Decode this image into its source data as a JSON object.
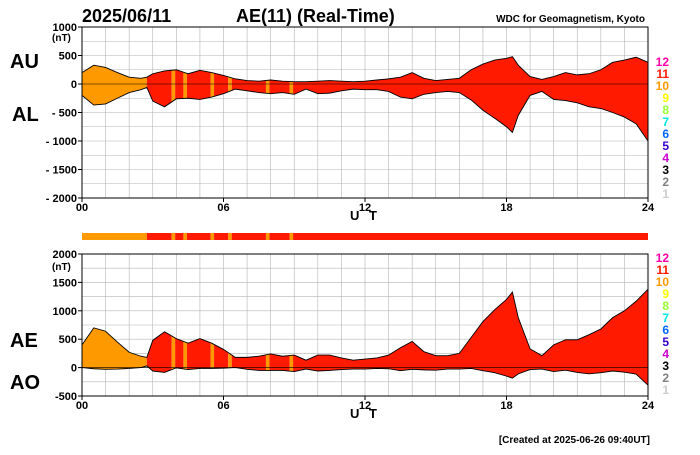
{
  "header": {
    "date": "2025/06/11",
    "title": "AE(11) (Real-Time)",
    "org": "WDC for Geomagnetism, Kyoto"
  },
  "footer": {
    "created": "[Created at 2025-06-26 09:40UT]"
  },
  "colors": {
    "station_count_fill": {
      "12": "#ff00aa",
      "11": "#ff1a00",
      "10": "#ff9900",
      "9": "#ffff00",
      "8": "#99ff33",
      "7": "#00e6e6",
      "6": "#0066ff",
      "5": "#3300cc",
      "4": "#cc00cc",
      "3": "#000000",
      "2": "#808080",
      "1": "#cccccc"
    }
  },
  "chart_data": [
    {
      "type": "area",
      "panel": "top",
      "upper_label": "AU",
      "lower_label": "AL",
      "ylabel": "(nT)",
      "xlabel": "U T",
      "xlim": [
        0,
        24
      ],
      "ylim": [
        -2000,
        1000
      ],
      "xticks": [
        0,
        6,
        12,
        18,
        24
      ],
      "xticklabels": [
        "00",
        "06",
        "12",
        "18",
        "24"
      ],
      "yticks": [
        1000,
        500,
        0,
        -500,
        -1000,
        -1500,
        -2000
      ],
      "yticklabels": [
        "1000",
        "500",
        "0",
        "- 500",
        "- 1000",
        "- 1500",
        "- 2000"
      ],
      "grid": true,
      "x": [
        0,
        0.5,
        1,
        1.5,
        2,
        2.5,
        2.75,
        3,
        3.5,
        4,
        4.5,
        5,
        5.5,
        6,
        6.5,
        7,
        7.5,
        8,
        8.5,
        9,
        9.5,
        10,
        10.5,
        11,
        11.5,
        12,
        12.5,
        13,
        13.5,
        14,
        14.5,
        15,
        15.5,
        16,
        16.5,
        17,
        17.5,
        18,
        18.25,
        18.5,
        19,
        19.5,
        20,
        20.5,
        21,
        21.5,
        22,
        22.5,
        23,
        23.5,
        24
      ],
      "series": [
        {
          "name": "AU",
          "values": [
            200,
            330,
            290,
            200,
            120,
            100,
            120,
            180,
            230,
            250,
            180,
            240,
            200,
            150,
            90,
            60,
            50,
            70,
            50,
            40,
            40,
            50,
            60,
            50,
            40,
            50,
            70,
            90,
            120,
            200,
            100,
            60,
            80,
            100,
            250,
            350,
            420,
            450,
            480,
            330,
            130,
            80,
            130,
            200,
            160,
            180,
            250,
            380,
            420,
            470,
            380
          ]
        },
        {
          "name": "AL",
          "values": [
            -200,
            -370,
            -350,
            -250,
            -150,
            -100,
            -60,
            -300,
            -400,
            -260,
            -250,
            -270,
            -230,
            -170,
            -90,
            -120,
            -150,
            -170,
            -150,
            -180,
            -90,
            -170,
            -160,
            -120,
            -90,
            -100,
            -100,
            -130,
            -230,
            -260,
            -180,
            -150,
            -130,
            -150,
            -280,
            -460,
            -600,
            -750,
            -850,
            -550,
            -200,
            -130,
            -270,
            -290,
            -330,
            -400,
            -430,
            -500,
            -580,
            -700,
            -1000
          ]
        }
      ],
      "station_count": [
        {
          "from": 0,
          "to": 2.75,
          "count": "10"
        },
        {
          "from": 2.75,
          "to": 3.8,
          "count": "11"
        },
        {
          "from": 3.8,
          "to": 3.95,
          "count": "10"
        },
        {
          "from": 3.95,
          "to": 4.3,
          "count": "11"
        },
        {
          "from": 4.3,
          "to": 4.45,
          "count": "10"
        },
        {
          "from": 4.45,
          "to": 5.45,
          "count": "11"
        },
        {
          "from": 5.45,
          "to": 5.6,
          "count": "10"
        },
        {
          "from": 5.6,
          "to": 6.2,
          "count": "11"
        },
        {
          "from": 6.2,
          "to": 6.35,
          "count": "10"
        },
        {
          "from": 6.35,
          "to": 7.8,
          "count": "11"
        },
        {
          "from": 7.8,
          "to": 7.95,
          "count": "10"
        },
        {
          "from": 7.95,
          "to": 8.8,
          "count": "11"
        },
        {
          "from": 8.8,
          "to": 8.95,
          "count": "10"
        },
        {
          "from": 8.95,
          "to": 24,
          "count": "11"
        }
      ],
      "legend": [
        "12",
        "11",
        "10",
        "9",
        "8",
        "7",
        "6",
        "5",
        "4",
        "3",
        "2",
        "1"
      ]
    },
    {
      "type": "area",
      "panel": "bottom",
      "upper_label": "AE",
      "lower_label": "AO",
      "ylabel": "(nT)",
      "xlabel": "U T",
      "xlim": [
        0,
        24
      ],
      "ylim": [
        -500,
        2000
      ],
      "xticks": [
        0,
        6,
        12,
        18,
        24
      ],
      "xticklabels": [
        "00",
        "06",
        "12",
        "18",
        "24"
      ],
      "yticks": [
        2000,
        1500,
        1000,
        500,
        0,
        -500
      ],
      "yticklabels": [
        "2000",
        "1500",
        "1000",
        "500",
        "0",
        "-500"
      ],
      "grid": true,
      "x": [
        0,
        0.5,
        1,
        1.5,
        2,
        2.5,
        2.75,
        3,
        3.5,
        4,
        4.5,
        5,
        5.5,
        6,
        6.5,
        7,
        7.5,
        8,
        8.5,
        9,
        9.5,
        10,
        10.5,
        11,
        11.5,
        12,
        12.5,
        13,
        13.5,
        14,
        14.5,
        15,
        15.5,
        16,
        16.5,
        17,
        17.5,
        18,
        18.25,
        18.5,
        19,
        19.5,
        20,
        20.5,
        21,
        21.5,
        22,
        22.5,
        23,
        23.5,
        24
      ],
      "series": [
        {
          "name": "AE",
          "values": [
            400,
            700,
            640,
            450,
            270,
            200,
            180,
            480,
            630,
            510,
            430,
            510,
            430,
            320,
            180,
            180,
            200,
            240,
            200,
            220,
            130,
            220,
            220,
            170,
            130,
            150,
            170,
            220,
            350,
            460,
            280,
            210,
            210,
            250,
            530,
            810,
            1020,
            1200,
            1330,
            880,
            330,
            210,
            400,
            490,
            490,
            580,
            680,
            880,
            1000,
            1170,
            1380
          ]
        },
        {
          "name": "AO",
          "values": [
            0,
            -20,
            -30,
            -25,
            -15,
            0,
            30,
            -60,
            -85,
            -5,
            -35,
            -15,
            -15,
            -10,
            0,
            -30,
            -50,
            -50,
            -50,
            -70,
            -25,
            -60,
            -50,
            -35,
            -25,
            -25,
            -15,
            -20,
            -55,
            -30,
            -40,
            -45,
            -25,
            -25,
            -15,
            -55,
            -90,
            -150,
            -185,
            -110,
            -35,
            -25,
            -70,
            -45,
            -85,
            -110,
            -90,
            -60,
            -80,
            -115,
            -310
          ]
        }
      ],
      "station_count": [
        {
          "from": 0,
          "to": 2.75,
          "count": "10"
        },
        {
          "from": 2.75,
          "to": 3.8,
          "count": "11"
        },
        {
          "from": 3.8,
          "to": 3.95,
          "count": "10"
        },
        {
          "from": 3.95,
          "to": 4.3,
          "count": "11"
        },
        {
          "from": 4.3,
          "to": 4.45,
          "count": "10"
        },
        {
          "from": 4.45,
          "to": 5.45,
          "count": "11"
        },
        {
          "from": 5.45,
          "to": 5.6,
          "count": "10"
        },
        {
          "from": 5.6,
          "to": 6.2,
          "count": "11"
        },
        {
          "from": 6.2,
          "to": 6.35,
          "count": "10"
        },
        {
          "from": 6.35,
          "to": 7.8,
          "count": "11"
        },
        {
          "from": 7.8,
          "to": 7.95,
          "count": "10"
        },
        {
          "from": 7.95,
          "to": 8.8,
          "count": "11"
        },
        {
          "from": 8.8,
          "to": 8.95,
          "count": "10"
        },
        {
          "from": 8.95,
          "to": 24,
          "count": "11"
        }
      ],
      "legend": [
        "12",
        "11",
        "10",
        "9",
        "8",
        "7",
        "6",
        "5",
        "4",
        "3",
        "2",
        "1"
      ]
    }
  ]
}
